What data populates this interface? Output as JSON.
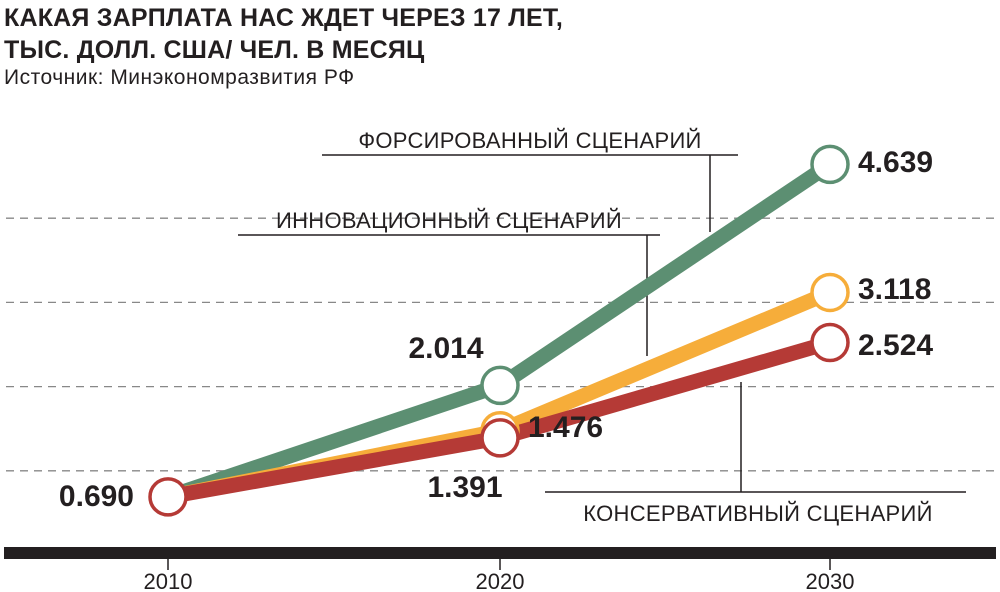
{
  "chart_data": {
    "type": "line",
    "title_lines": [
      "КАКАЯ ЗАРПЛАТА НАС ЖДЕТ ЧЕРЕЗ 17 ЛЕТ,",
      "ТЫС. ДОЛЛ. США/ ЧЕЛ. В МЕСЯЦ"
    ],
    "subtitle": "Источник: Минэкономразвития РФ",
    "x": [
      "2010",
      "2020",
      "2030"
    ],
    "ylim": [
      0,
      5
    ],
    "grid": true,
    "series": [
      {
        "name": "ФОРСИРОВАННЫЙ СЦЕНАРИЙ",
        "color": "#5c8f72",
        "values": [
          0.69,
          2.014,
          4.639
        ]
      },
      {
        "name": "ИННОВАЦИОННЫЙ СЦЕНАРИЙ",
        "color": "#f6ad3a",
        "values": [
          0.69,
          1.476,
          3.118
        ]
      },
      {
        "name": "КОНСЕРВАТИВНЫЙ СЦЕНАРИЙ",
        "color": "#b53a36",
        "values": [
          0.69,
          1.391,
          2.524
        ]
      }
    ],
    "value_labels": {
      "start": "0.690",
      "forced_2020": "2.014",
      "forced_2030": "4.639",
      "innov_2020": "1.476",
      "innov_2030": "3.118",
      "cons_2020": "1.391",
      "cons_2030": "2.524"
    }
  }
}
